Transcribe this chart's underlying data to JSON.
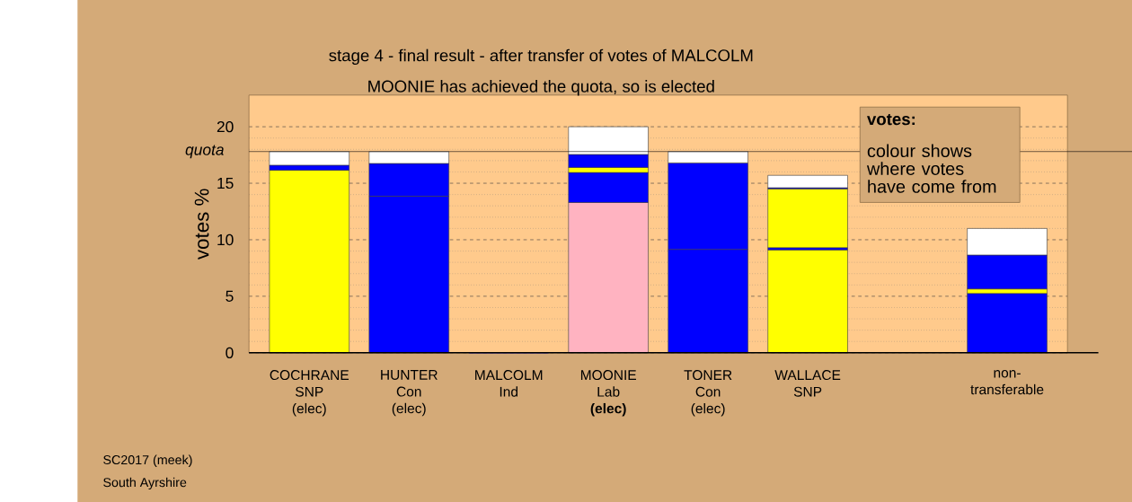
{
  "chart_data": {
    "type": "bar",
    "stacked": true,
    "title": "stage 4 - final result - after transfer of votes of MALCOLM",
    "subtitle": "MOONIE has achieved the quota, so is elected",
    "ylabel": "votes %",
    "categories": [
      "COCHRANE SNP (elec)",
      "HUNTER Con (elec)",
      "MALCOLM Ind",
      "MOONIE Lab **(elec)**",
      "TONER Con (elec)",
      "WALLACE SNP",
      null,
      "non-transferable"
    ],
    "series": [
      {
        "values": [
          16.15,
          13.85,
          0,
          13.3,
          9.15,
          9.1,
          null,
          5.25
        ],
        "colors": [
          "#ffff00",
          "#0000ff",
          "#0000ff",
          "#ffb3c1",
          "#0000ff",
          "#ffff00",
          null,
          "#0000ff"
        ]
      },
      {
        "values": [
          0.45,
          2.9,
          null,
          2.65,
          7.65,
          0.2,
          null,
          0.4
        ],
        "colors": [
          "#0000ff",
          "#0000ff",
          null,
          "#0000ff",
          "#0000ff",
          "#0000ff",
          null,
          "#ffff00"
        ]
      },
      {
        "values": [
          1.2,
          1.05,
          null,
          0.45,
          1.0,
          5.2,
          null,
          3.0
        ],
        "colors": [
          "#ffffff",
          "#ffffff",
          null,
          "#ffff00",
          "#ffffff",
          "#ffff00",
          null,
          "#0000ff"
        ]
      },
      {
        "values": [
          null,
          null,
          null,
          1.15,
          null,
          0.1,
          null,
          2.35
        ],
        "colors": [
          null,
          null,
          null,
          "#0000ff",
          null,
          "#0000ff",
          null,
          "#ffffff"
        ]
      },
      {
        "values": [
          null,
          null,
          null,
          2.45,
          null,
          1.1,
          null,
          null
        ],
        "colors": [
          null,
          null,
          null,
          "#ffffff",
          null,
          "#ffffff",
          null,
          null
        ]
      }
    ],
    "ylim": [
      0,
      22.8
    ],
    "yticks": [
      0,
      5,
      10,
      15,
      20
    ],
    "grid": "y",
    "ref_lines": [
      {
        "axis": "y",
        "value": 17.8,
        "label": "quota",
        "color": "#000000"
      }
    ],
    "annotations": [
      "votes:",
      "colour shows where votes have come from",
      "SC2017 (meek)",
      "South Ayrshire"
    ]
  }
}
